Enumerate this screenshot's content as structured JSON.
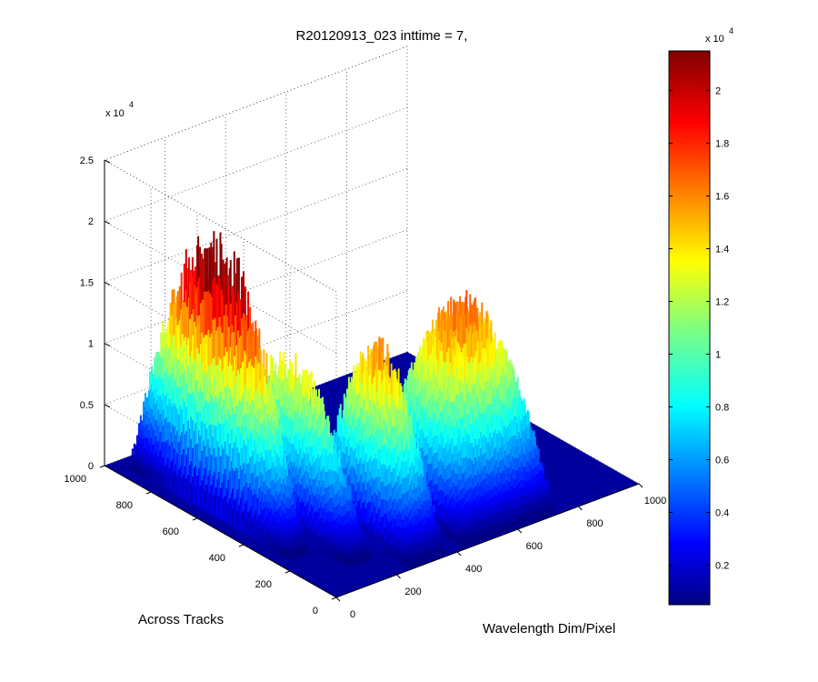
{
  "chart_data": {
    "type": "surface",
    "title": "R20120913_023 inttime = 7,",
    "xlabel": "Wavelength Dim/Pixel",
    "ylabel": "Across Tracks",
    "zlabel": "",
    "z_multiplier_label": "x 10",
    "z_multiplier_exponent": "4",
    "x_ticks": [
      "0",
      "200",
      "400",
      "600",
      "800",
      "1000"
    ],
    "y_ticks": [
      "0",
      "200",
      "400",
      "600",
      "800",
      "1000"
    ],
    "z_ticks": [
      "0",
      "0.5",
      "1",
      "1.5",
      "2",
      "2.5"
    ],
    "xlim": [
      0,
      1000
    ],
    "ylim": [
      0,
      1000
    ],
    "zlim": [
      0,
      25000
    ],
    "colormap": "jet",
    "grid": true,
    "colorbar": {
      "ticks": [
        "0.2",
        "0.4",
        "0.6",
        "0.8",
        "1",
        "1.2",
        "1.4",
        "1.6",
        "1.8",
        "2"
      ],
      "multiplier_label": "x 10",
      "multiplier_exponent": "4",
      "range": [
        500,
        21500
      ]
    },
    "series": [
      {
        "x_range": [
          30,
          90
        ],
        "y_range": [
          240,
          950
        ],
        "peak_z": 23500
      },
      {
        "x_range": [
          125,
          195
        ],
        "y_range": [
          100,
          700
        ],
        "peak_z": 14500
      },
      {
        "x_range": [
          240,
          360
        ],
        "y_range": [
          0,
          430
        ],
        "peak_z": 16500
      },
      {
        "x_range": [
          420,
          720
        ],
        "y_range": [
          0,
          420
        ],
        "peak_z": 17500
      }
    ]
  }
}
